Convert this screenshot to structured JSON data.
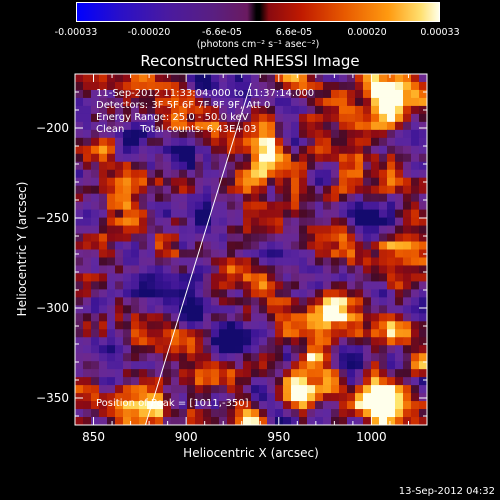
{
  "colorbar": {
    "tick_labels": [
      "-0.00033",
      "-0.00020",
      "-6.6e-05",
      "6.6e-05",
      "0.00020",
      "0.00033"
    ],
    "units": "(photons cm⁻² s⁻¹ asec⁻²)",
    "range": [
      -0.00033,
      0.00033
    ]
  },
  "chart_data": {
    "type": "heatmap",
    "title": "Reconstructed RHESSI Image",
    "xlabel": "Heliocentric X (arcsec)",
    "ylabel": "Heliocentric Y (arcsec)",
    "xlim": [
      840,
      1030
    ],
    "ylim": [
      -365,
      -170
    ],
    "xticks": [
      850,
      900,
      950,
      1000
    ],
    "yticks": [
      -200,
      -250,
      -300,
      -350
    ],
    "limb_line": [
      [
        878,
        -365
      ],
      [
        935,
        -175
      ]
    ],
    "annotations": {
      "line1": "11-Sep-2012 11:33:04.000 to 11:37:14.000",
      "line2": "Detectors: 3F 5F 6F 7F 8F 9F, Att 0",
      "line3": "Energy Range: 25.0 - 50.0 keV",
      "line4": "Clean     Total counts: 6.43E+03",
      "peak": "Position of Peak = [1011,-350]"
    },
    "peak": [
      1011,
      -350
    ],
    "bright_sources": [
      {
        "x": 1005,
        "y": -185,
        "level": 0.85
      },
      {
        "x": 1011,
        "y": -350,
        "level": 1.0
      },
      {
        "x": 960,
        "y": -345,
        "level": 0.6
      },
      {
        "x": 940,
        "y": -215,
        "level": 0.6
      },
      {
        "x": 870,
        "y": -250,
        "level": 0.55
      },
      {
        "x": 975,
        "y": -305,
        "level": 0.55
      },
      {
        "x": 1020,
        "y": -270,
        "level": 0.5
      },
      {
        "x": 880,
        "y": -350,
        "level": 0.5
      }
    ]
  },
  "timestamp": "13-Sep-2012 04:32"
}
